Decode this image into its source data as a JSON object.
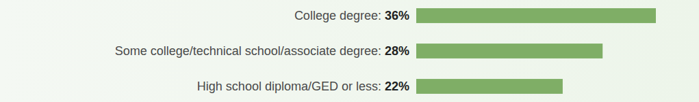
{
  "chart_data": {
    "type": "bar",
    "orientation": "horizontal",
    "categories": [
      "College degree:",
      "Some college/technical school/associate degree:",
      "High school diploma/GED or less:"
    ],
    "values": [
      36,
      28,
      22
    ],
    "value_labels": [
      "36%",
      "28%",
      "22%"
    ],
    "data_labels": true,
    "color": "#7fae66",
    "xlim": [
      0,
      36
    ],
    "tick_labels": false,
    "grid": false
  }
}
